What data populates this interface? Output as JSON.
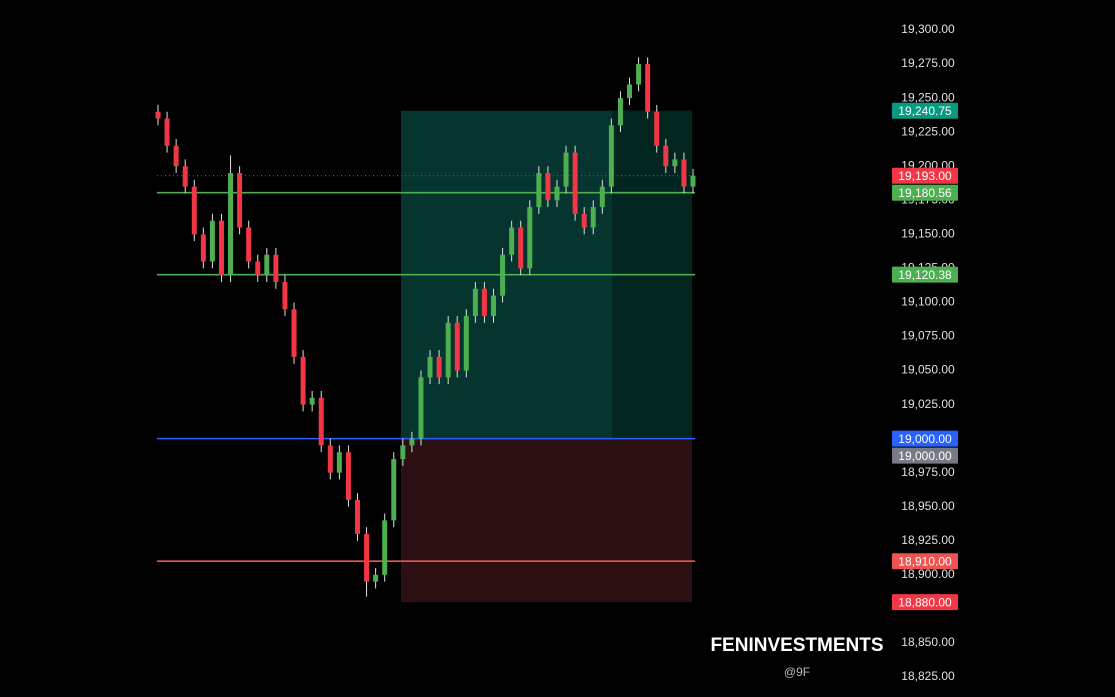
{
  "chart_data": {
    "type": "candlestick",
    "candles": {
      "open": [
        19240,
        19235,
        19215,
        19200,
        19185,
        19150,
        19130,
        19160,
        19120,
        19195,
        19155,
        19130,
        19120,
        19135,
        19115,
        19095,
        19060,
        19025,
        19030,
        18995,
        18975,
        18990,
        18955,
        18930,
        18895,
        18900,
        18940,
        18985,
        18995,
        19000,
        19045,
        19060,
        19045,
        19085,
        19050,
        19090,
        19110,
        19090,
        19105,
        19135,
        19155,
        19125,
        19170,
        19195,
        19175,
        19185,
        19210,
        19165,
        19155,
        19170,
        19185,
        19230,
        19250,
        19260,
        19275,
        19240,
        19215,
        19200,
        19205,
        19185
      ],
      "high": [
        19245,
        19240,
        19220,
        19205,
        19190,
        19155,
        19165,
        19165,
        19208,
        19200,
        19160,
        19135,
        19140,
        19140,
        19120,
        19100,
        19065,
        19035,
        19035,
        19000,
        18995,
        18995,
        18960,
        18935,
        18905,
        18945,
        18990,
        19000,
        19005,
        19050,
        19065,
        19065,
        19090,
        19090,
        19095,
        19115,
        19115,
        19110,
        19140,
        19160,
        19160,
        19175,
        19200,
        19200,
        19190,
        19215,
        19215,
        19170,
        19175,
        19190,
        19235,
        19255,
        19265,
        19280,
        19280,
        19245,
        19220,
        19210,
        19210,
        19198
      ],
      "low": [
        19230,
        19210,
        19195,
        19180,
        19145,
        19125,
        19125,
        19115,
        19115,
        19150,
        19125,
        19115,
        19115,
        19110,
        19090,
        19055,
        19020,
        19020,
        18990,
        18970,
        18970,
        18950,
        18925,
        18884,
        18890,
        18895,
        18935,
        18980,
        18990,
        18995,
        19040,
        19040,
        19040,
        19045,
        19045,
        19085,
        19085,
        19085,
        19100,
        19130,
        19120,
        19120,
        19165,
        19170,
        19170,
        19180,
        19160,
        19150,
        19150,
        19165,
        19180,
        19225,
        19245,
        19255,
        19235,
        19210,
        19195,
        19195,
        19180,
        19180
      ],
      "close": [
        19235,
        19215,
        19200,
        19185,
        19150,
        19130,
        19160,
        19120,
        19195,
        19155,
        19130,
        19120,
        19135,
        19115,
        19095,
        19060,
        19025,
        19030,
        18995,
        18975,
        18990,
        18955,
        18930,
        18895,
        18900,
        18940,
        18985,
        18995,
        19000,
        19045,
        19060,
        19045,
        19085,
        19050,
        19090,
        19110,
        19090,
        19105,
        19135,
        19155,
        19125,
        19170,
        19195,
        19175,
        19185,
        19210,
        19165,
        19155,
        19170,
        19185,
        19230,
        19250,
        19260,
        19275,
        19240,
        19215,
        19200,
        19205,
        19185,
        19193
      ]
    },
    "up_color": "#4caf50",
    "down_color": "#f23645",
    "ylim": [
      18825,
      19300
    ],
    "yticks": [
      {
        "value": 18825,
        "label": "18,825.00"
      },
      {
        "value": 18850,
        "label": "18,850.00"
      },
      {
        "value": 18900,
        "label": "18,900.00"
      },
      {
        "value": 18925,
        "label": "18,925.00"
      },
      {
        "value": 18950,
        "label": "18,950.00"
      },
      {
        "value": 18975,
        "label": "18,975.00"
      },
      {
        "value": 19025,
        "label": "19,025.00"
      },
      {
        "value": 19050,
        "label": "19,050.00"
      },
      {
        "value": 19075,
        "label": "19,075.00"
      },
      {
        "value": 19100,
        "label": "19,100.00"
      },
      {
        "value": 19125,
        "label": "19,125.00"
      },
      {
        "value": 19150,
        "label": "19,150.00"
      },
      {
        "value": 19175,
        "label": "19,175.00"
      },
      {
        "value": 19200,
        "label": "19,200.00"
      },
      {
        "value": 19225,
        "label": "19,225.00"
      },
      {
        "value": 19250,
        "label": "19,250.00"
      },
      {
        "value": 19275,
        "label": "19,275.00"
      },
      {
        "value": 19300,
        "label": "19,300.00"
      }
    ],
    "levels": [
      {
        "value": 19240.75,
        "label": "19,240.75",
        "color": "#089981",
        "line": "none"
      },
      {
        "value": 19193,
        "label": "19,193.00",
        "color": "#f23645",
        "line": "dotted"
      },
      {
        "value": 19180.56,
        "label": "19,180.56",
        "color": "#4caf50",
        "line": "solid"
      },
      {
        "value": 19120.38,
        "label": "19,120.38",
        "color": "#4caf50",
        "line": "solid"
      },
      {
        "value": 19000,
        "label": "19,000.00",
        "color": "#2962ff",
        "line": "solid"
      },
      {
        "value": 19000,
        "label": "19,000.00",
        "color": "#787b86",
        "line": "none"
      },
      {
        "value": 18910,
        "label": "18,910.00",
        "color": "#f05350",
        "line": "solid"
      },
      {
        "value": 18880,
        "label": "18,880.00",
        "color": "#f23645",
        "line": "none"
      }
    ],
    "position": {
      "target": 19240.75,
      "entry": 19000,
      "stop": 18880
    },
    "watermark": "FENINVESTMENTS",
    "watermark_sub": "@9F"
  }
}
